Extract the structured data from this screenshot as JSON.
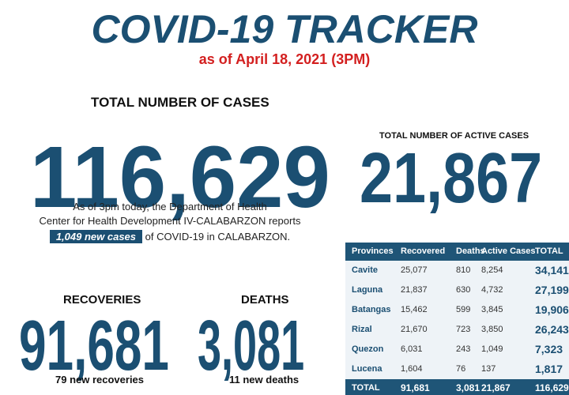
{
  "header": {
    "title": "COVID-19 TRACKER",
    "date": "as of April 18, 2021 (3PM)"
  },
  "total_cases": {
    "label": "TOTAL NUMBER OF CASES",
    "value": "116,629"
  },
  "active_cases": {
    "label": "TOTAL NUMBER OF ACTIVE CASES",
    "value": "21,867"
  },
  "report": {
    "lines": [
      "As of 3pm today, the Department of Health",
      "Center for Health Development IV-CALABARZON reports"
    ],
    "highlight": "1,049 new cases",
    "tail": "of COVID-19 in CALABARZON."
  },
  "recoveries": {
    "label": "RECOVERIES",
    "value": "91,681",
    "note": "79 new recoveries"
  },
  "deaths": {
    "label": "DEATHS",
    "value": "3,081",
    "note": "11 new deaths"
  },
  "table": {
    "columns": [
      "Provinces",
      "Recovered",
      "Deaths",
      "Active Cases",
      "TOTAL"
    ],
    "rows": [
      [
        "Cavite",
        "25,077",
        "810",
        "8,254",
        "34,141"
      ],
      [
        "Laguna",
        "21,837",
        "630",
        "4,732",
        "27,199"
      ],
      [
        "Batangas",
        "15,462",
        "599",
        "3,845",
        "19,906"
      ],
      [
        "Rizal",
        "21,670",
        "723",
        "3,850",
        "26,243"
      ],
      [
        "Quezon",
        "6,031",
        "243",
        "1,049",
        "7,323"
      ],
      [
        "Lucena",
        "1,604",
        "76",
        "137",
        "1,817"
      ]
    ],
    "total": [
      "TOTAL",
      "91,681",
      "3,081",
      "21,867",
      "116,629"
    ]
  }
}
